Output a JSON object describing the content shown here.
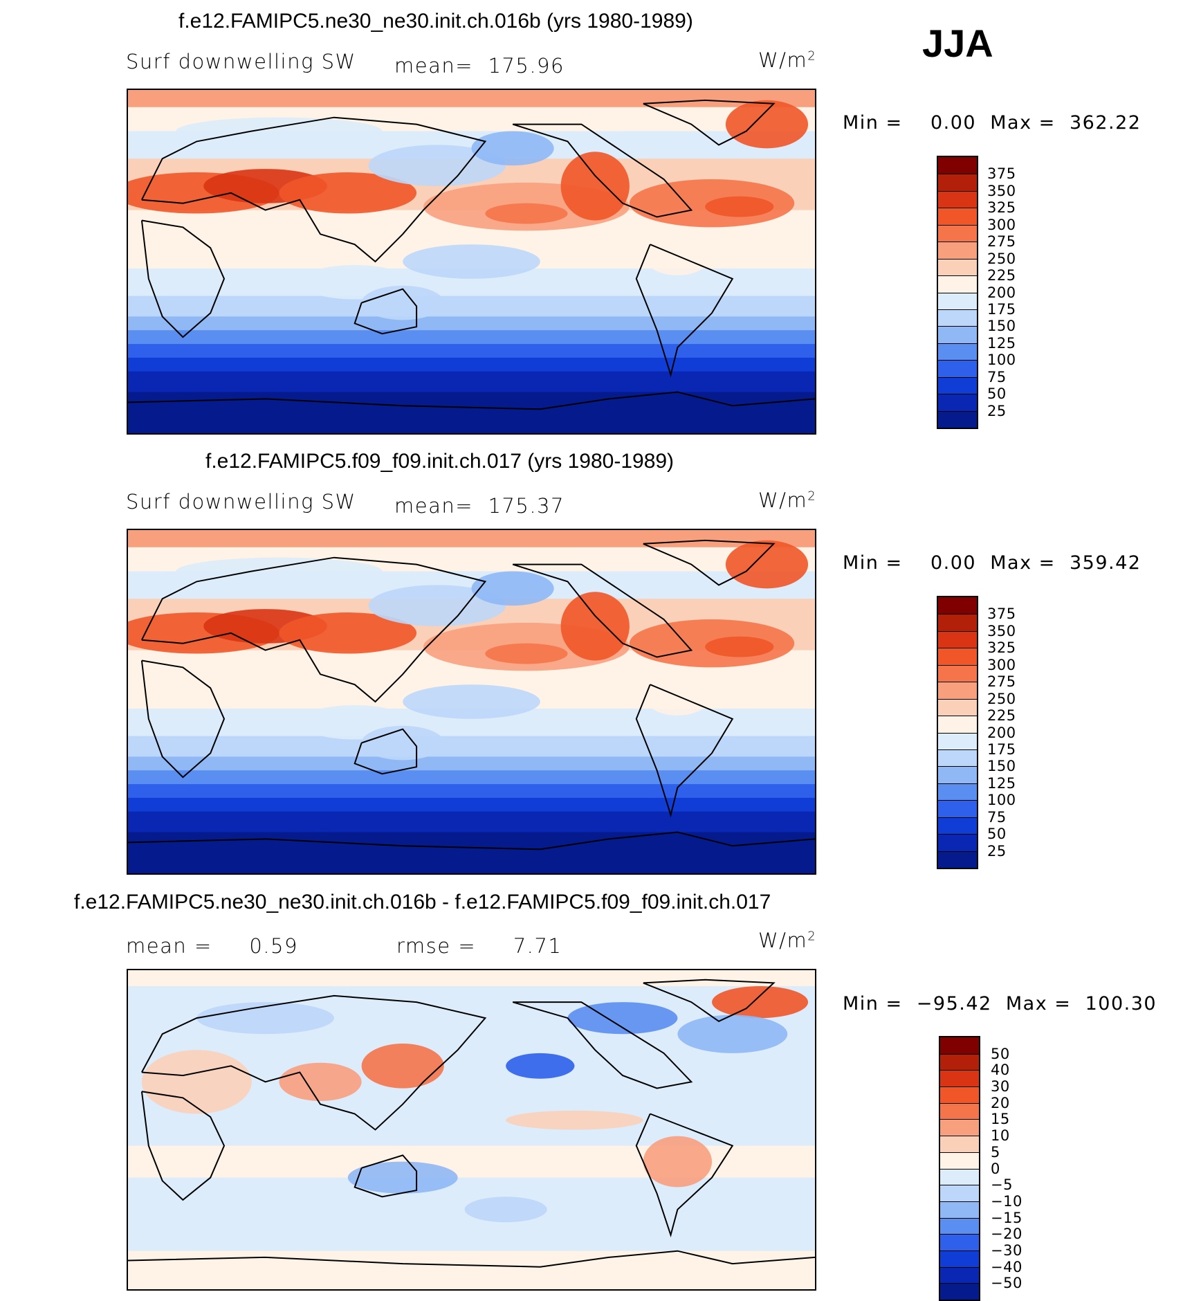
{
  "season": "JJA",
  "chart_data": [
    {
      "type": "heatmap",
      "title": "f.e12.FAMIPC5.ne30_ne30.init.ch.016b (yrs 1980-1989)",
      "variable": "Surf downwelling SW",
      "mean_label": "mean=",
      "mean": "175.96",
      "units": "W/m",
      "units_exp": "2",
      "min_label": "Min =",
      "min": "0.00",
      "max_label": "Max =",
      "max": "362.22",
      "colorbar": {
        "levels": [
          "375",
          "350",
          "325",
          "300",
          "275",
          "250",
          "225",
          "200",
          "175",
          "150",
          "125",
          "100",
          "75",
          "50",
          "25"
        ],
        "colors": [
          "#800000",
          "#b3200a",
          "#d93414",
          "#f05628",
          "#f5744a",
          "#f8a07e",
          "#fbd0b8",
          "#fff2e6",
          "#dcecfb",
          "#bcd7fa",
          "#8fb8f5",
          "#5a8ef0",
          "#2e60eb",
          "#103dd6",
          "#0a27b4",
          "#051a8c"
        ]
      },
      "xlim": [
        -180,
        180
      ],
      "ylim": [
        -90,
        90
      ]
    },
    {
      "type": "heatmap",
      "title": "f.e12.FAMIPC5.f09_f09.init.ch.017 (yrs 1980-1989)",
      "variable": "Surf downwelling SW",
      "mean_label": "mean=",
      "mean": "175.37",
      "units": "W/m",
      "units_exp": "2",
      "min_label": "Min =",
      "min": "0.00",
      "max_label": "Max =",
      "max": "359.42",
      "colorbar": {
        "levels": [
          "375",
          "350",
          "325",
          "300",
          "275",
          "250",
          "225",
          "200",
          "175",
          "150",
          "125",
          "100",
          "75",
          "50",
          "25"
        ],
        "colors": [
          "#800000",
          "#b3200a",
          "#d93414",
          "#f05628",
          "#f5744a",
          "#f8a07e",
          "#fbd0b8",
          "#fff2e6",
          "#dcecfb",
          "#bcd7fa",
          "#8fb8f5",
          "#5a8ef0",
          "#2e60eb",
          "#103dd6",
          "#0a27b4",
          "#051a8c"
        ]
      },
      "xlim": [
        -180,
        180
      ],
      "ylim": [
        -90,
        90
      ]
    },
    {
      "type": "heatmap",
      "title": "f.e12.FAMIPC5.ne30_ne30.init.ch.016b - f.e12.FAMIPC5.f09_f09.init.ch.017",
      "mean_label": "mean =",
      "mean": "0.59",
      "rmse_label": "rmse =",
      "rmse": "7.71",
      "units": "W/m",
      "units_exp": "2",
      "min_label": "Min =",
      "min": "−95.42",
      "max_label": "Max =",
      "max": "100.30",
      "colorbar": {
        "levels": [
          "50",
          "40",
          "30",
          "20",
          "15",
          "10",
          "5",
          "0",
          "−5",
          "−10",
          "−15",
          "−20",
          "−30",
          "−40",
          "−50"
        ],
        "colors": [
          "#800000",
          "#b3200a",
          "#d93414",
          "#f05628",
          "#f5744a",
          "#f8a07e",
          "#fbd0b8",
          "#fff2e6",
          "#dcecfb",
          "#bcd7fa",
          "#8fb8f5",
          "#5a8ef0",
          "#2e60eb",
          "#103dd6",
          "#0a27b4",
          "#051a8c"
        ]
      },
      "xlim": [
        -180,
        180
      ],
      "ylim": [
        -90,
        90
      ]
    }
  ]
}
